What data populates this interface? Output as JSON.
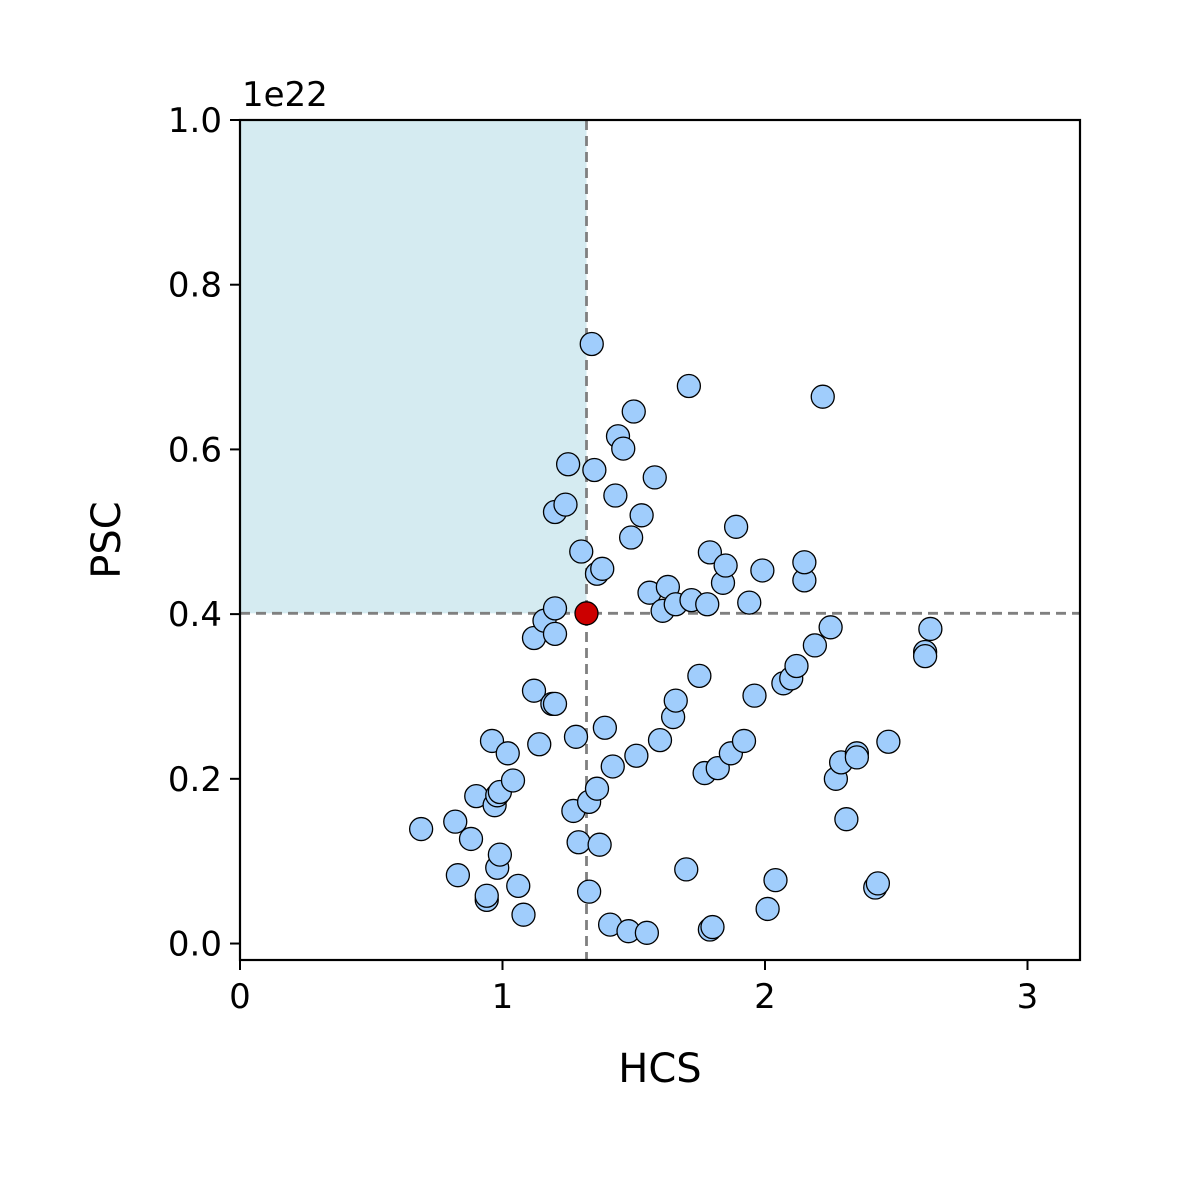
{
  "chart_data": {
    "type": "scatter",
    "title": "",
    "xlabel": "HCS",
    "ylabel": "PSC",
    "y_offset_label": "1e22",
    "y_scale": 1e+22,
    "xlim": [
      0,
      3.2
    ],
    "ylim": [
      -0.02,
      1.0
    ],
    "x_ticks": [
      0,
      1,
      2,
      3
    ],
    "x_tick_labels": [
      "0",
      "1",
      "2",
      "3"
    ],
    "y_ticks": [
      0.0,
      0.2,
      0.4,
      0.6,
      0.8,
      1.0
    ],
    "y_tick_labels": [
      "0.0",
      "0.2",
      "0.4",
      "0.6",
      "0.8",
      "1.0"
    ],
    "grid": false,
    "point_color": "#a0cdfc",
    "highlight_color": "#cc0000",
    "region_color": "#d5ebf1",
    "reference_line_color": "#808080",
    "threshold": {
      "x": 1.32,
      "y": 0.401
    },
    "shaded_region": {
      "x": [
        0,
        1.32
      ],
      "y": [
        0.401,
        1.0
      ]
    },
    "highlight": {
      "x": 1.32,
      "y": 0.401
    },
    "points": [
      [
        0.69,
        0.139
      ],
      [
        0.82,
        0.148
      ],
      [
        0.83,
        0.083
      ],
      [
        0.88,
        0.127
      ],
      [
        0.9,
        0.179
      ],
      [
        0.94,
        0.053
      ],
      [
        0.94,
        0.058
      ],
      [
        0.96,
        0.246
      ],
      [
        0.97,
        0.168
      ],
      [
        0.98,
        0.18
      ],
      [
        0.98,
        0.092
      ],
      [
        0.99,
        0.108
      ],
      [
        0.99,
        0.184
      ],
      [
        1.02,
        0.231
      ],
      [
        1.04,
        0.198
      ],
      [
        1.06,
        0.07
      ],
      [
        1.08,
        0.035
      ],
      [
        1.12,
        0.307
      ],
      [
        1.12,
        0.371
      ],
      [
        1.14,
        0.242
      ],
      [
        1.16,
        0.392
      ],
      [
        1.19,
        0.291
      ],
      [
        1.2,
        0.291
      ],
      [
        1.2,
        0.376
      ],
      [
        1.2,
        0.407
      ],
      [
        1.2,
        0.524
      ],
      [
        1.24,
        0.533
      ],
      [
        1.25,
        0.582
      ],
      [
        1.27,
        0.161
      ],
      [
        1.28,
        0.251
      ],
      [
        1.29,
        0.123
      ],
      [
        1.3,
        0.476
      ],
      [
        1.33,
        0.172
      ],
      [
        1.33,
        0.063
      ],
      [
        1.34,
        0.728
      ],
      [
        1.35,
        0.575
      ],
      [
        1.36,
        0.188
      ],
      [
        1.36,
        0.449
      ],
      [
        1.37,
        0.12
      ],
      [
        1.38,
        0.455
      ],
      [
        1.39,
        0.262
      ],
      [
        1.41,
        0.023
      ],
      [
        1.42,
        0.215
      ],
      [
        1.43,
        0.544
      ],
      [
        1.44,
        0.616
      ],
      [
        1.46,
        0.601
      ],
      [
        1.48,
        0.015
      ],
      [
        1.49,
        0.493
      ],
      [
        1.5,
        0.646
      ],
      [
        1.51,
        0.228
      ],
      [
        1.53,
        0.52
      ],
      [
        1.55,
        0.013
      ],
      [
        1.56,
        0.426
      ],
      [
        1.58,
        0.566
      ],
      [
        1.6,
        0.247
      ],
      [
        1.61,
        0.404
      ],
      [
        1.63,
        0.433
      ],
      [
        1.65,
        0.275
      ],
      [
        1.66,
        0.295
      ],
      [
        1.66,
        0.412
      ],
      [
        1.7,
        0.09
      ],
      [
        1.71,
        0.677
      ],
      [
        1.72,
        0.417
      ],
      [
        1.75,
        0.325
      ],
      [
        1.77,
        0.207
      ],
      [
        1.78,
        0.412
      ],
      [
        1.79,
        0.017
      ],
      [
        1.79,
        0.475
      ],
      [
        1.8,
        0.02
      ],
      [
        1.82,
        0.213
      ],
      [
        1.84,
        0.438
      ],
      [
        1.85,
        0.459
      ],
      [
        1.87,
        0.231
      ],
      [
        1.89,
        0.506
      ],
      [
        1.92,
        0.246
      ],
      [
        1.94,
        0.414
      ],
      [
        1.96,
        0.301
      ],
      [
        1.99,
        0.453
      ],
      [
        2.01,
        0.042
      ],
      [
        2.04,
        0.077
      ],
      [
        2.07,
        0.316
      ],
      [
        2.1,
        0.322
      ],
      [
        2.12,
        0.337
      ],
      [
        2.15,
        0.441
      ],
      [
        2.15,
        0.463
      ],
      [
        2.19,
        0.362
      ],
      [
        2.22,
        0.664
      ],
      [
        2.25,
        0.384
      ],
      [
        2.27,
        0.2
      ],
      [
        2.29,
        0.22
      ],
      [
        2.31,
        0.151
      ],
      [
        2.35,
        0.231
      ],
      [
        2.35,
        0.226
      ],
      [
        2.42,
        0.068
      ],
      [
        2.43,
        0.073
      ],
      [
        2.47,
        0.245
      ],
      [
        2.61,
        0.354
      ],
      [
        2.61,
        0.349
      ],
      [
        2.63,
        0.382
      ]
    ]
  }
}
